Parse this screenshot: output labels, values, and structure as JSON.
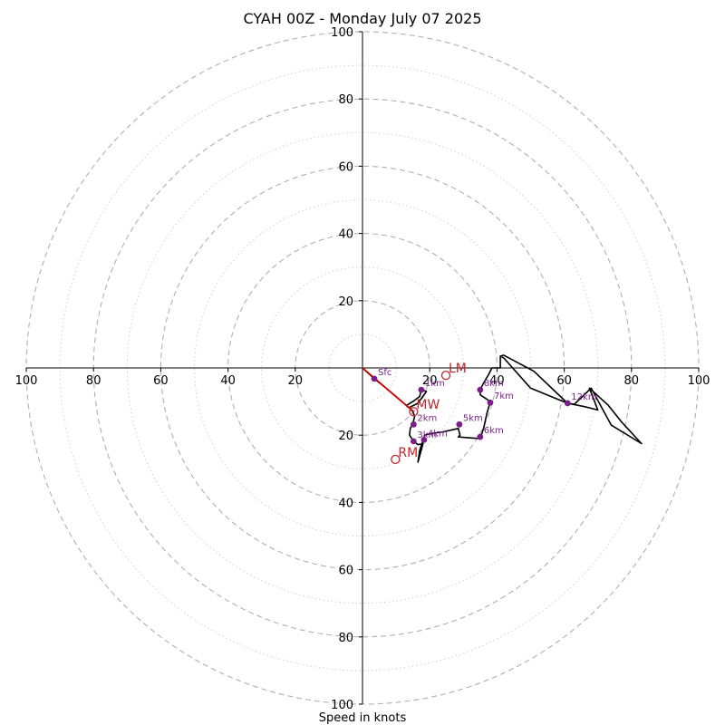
{
  "chart_data": {
    "type": "hodograph",
    "title": "CYAH 00Z - Monday July 07 2025",
    "xlabel": "Speed in knots",
    "ylabel": "",
    "u_range": [
      -100,
      100
    ],
    "v_range": [
      -100,
      100
    ],
    "rings_major": [
      20,
      40,
      60,
      80,
      100
    ],
    "rings_minor": [
      10,
      30,
      50,
      70,
      90
    ],
    "tick_values": [
      20,
      40,
      60,
      80,
      100
    ],
    "grid": true,
    "colors": {
      "hodograph": "#000000",
      "mean_wind_line": "#d40000",
      "height_points": "#7a1f8a",
      "storm_motion": "#c0262d",
      "grid": "#b0b0b0"
    },
    "hodograph_trace": [
      [
        0,
        0
      ],
      [
        3.5,
        -3.2
      ],
      [
        7,
        -6
      ],
      [
        10.5,
        -9
      ],
      [
        13.8,
        -11.8
      ],
      [
        15,
        -13
      ],
      [
        15.5,
        -14.5
      ],
      [
        15,
        -16.5
      ],
      [
        14.2,
        -18
      ],
      [
        14,
        -20
      ],
      [
        15.2,
        -21.8
      ],
      [
        16.5,
        -22.8
      ],
      [
        18,
        -22.5
      ],
      [
        16.5,
        -28
      ],
      [
        17,
        -24.5
      ],
      [
        18.5,
        -20
      ],
      [
        20.5,
        -19.5
      ],
      [
        24,
        -19
      ],
      [
        28.5,
        -18
      ],
      [
        29,
        -20
      ],
      [
        28.5,
        -20.5
      ],
      [
        32,
        -20.8
      ],
      [
        35,
        -21
      ],
      [
        36,
        -18
      ],
      [
        37,
        -13.5
      ],
      [
        38,
        -10
      ],
      [
        35,
        -8
      ],
      [
        35,
        -6.5
      ],
      [
        36,
        -4.5
      ],
      [
        37.5,
        -2
      ],
      [
        38.5,
        0
      ],
      [
        41,
        0
      ],
      [
        41,
        3.5
      ],
      [
        42,
        3.8
      ],
      [
        51,
        -1
      ],
      [
        61,
        -10.5
      ],
      [
        66,
        -11.5
      ],
      [
        70,
        -12.5
      ],
      [
        67.5,
        -6
      ],
      [
        73,
        -11
      ],
      [
        77,
        -16
      ],
      [
        83,
        -22.5
      ],
      [
        74,
        -17
      ],
      [
        68,
        -6
      ],
      [
        63,
        -10.8
      ],
      [
        61,
        -10.5
      ],
      [
        50,
        -6
      ],
      [
        42,
        3
      ],
      [
        41,
        3.5
      ],
      [
        41,
        0
      ],
      [
        38.5,
        0
      ],
      [
        37.5,
        -2
      ],
      [
        36,
        -4.5
      ],
      [
        35,
        -6.5
      ],
      [
        35,
        -8
      ],
      [
        38,
        -10
      ],
      [
        37,
        -13.5
      ],
      [
        36,
        -18
      ],
      [
        35,
        -21
      ],
      [
        32,
        -20.8
      ],
      [
        28.5,
        -20.5
      ],
      [
        29,
        -20
      ],
      [
        28.5,
        -18
      ],
      [
        24,
        -19
      ],
      [
        20.5,
        -19.5
      ],
      [
        18.5,
        -20
      ],
      [
        17,
        -24.5
      ],
      [
        16.5,
        -28
      ],
      [
        18,
        -22.5
      ],
      [
        16.5,
        -22.8
      ],
      [
        15.2,
        -21.8
      ],
      [
        14,
        -20
      ],
      [
        14.2,
        -18
      ],
      [
        15,
        -16.5
      ],
      [
        15.5,
        -14.5
      ],
      [
        15,
        -13
      ],
      [
        13.8,
        -11.8
      ],
      [
        16.5,
        -10.5
      ],
      [
        19,
        -7
      ],
      [
        17.5,
        -6.5
      ],
      [
        17,
        -8.5
      ],
      [
        15,
        -10
      ],
      [
        13,
        -11.2
      ],
      [
        13.8,
        -11.8
      ]
    ],
    "height_points": [
      {
        "label": "Sfc",
        "u": 3.5,
        "v": -3.2
      },
      {
        "label": "1km",
        "u": 17.5,
        "v": -6.5
      },
      {
        "label": "2km",
        "u": 15.2,
        "v": -16.8
      },
      {
        "label": "3km",
        "u": 15.2,
        "v": -21.8
      },
      {
        "label": "4km",
        "u": 18.3,
        "v": -21.4
      },
      {
        "label": "5km",
        "u": 28.8,
        "v": -16.8
      },
      {
        "label": "6km",
        "u": 35,
        "v": -20.5
      },
      {
        "label": "7km",
        "u": 38,
        "v": -10.3
      },
      {
        "label": "8km",
        "u": 35,
        "v": -6.5
      },
      {
        "label": "12km",
        "u": 61,
        "v": -10.5
      }
    ],
    "mean_wind_line": [
      [
        0,
        0
      ],
      [
        15.2,
        -13
      ]
    ],
    "storm_motions": [
      {
        "label": "LM",
        "u": 24.8,
        "v": -2.2
      },
      {
        "label": "MW",
        "u": 15.2,
        "v": -13
      },
      {
        "label": "RM",
        "u": 9.8,
        "v": -27.2
      }
    ]
  }
}
